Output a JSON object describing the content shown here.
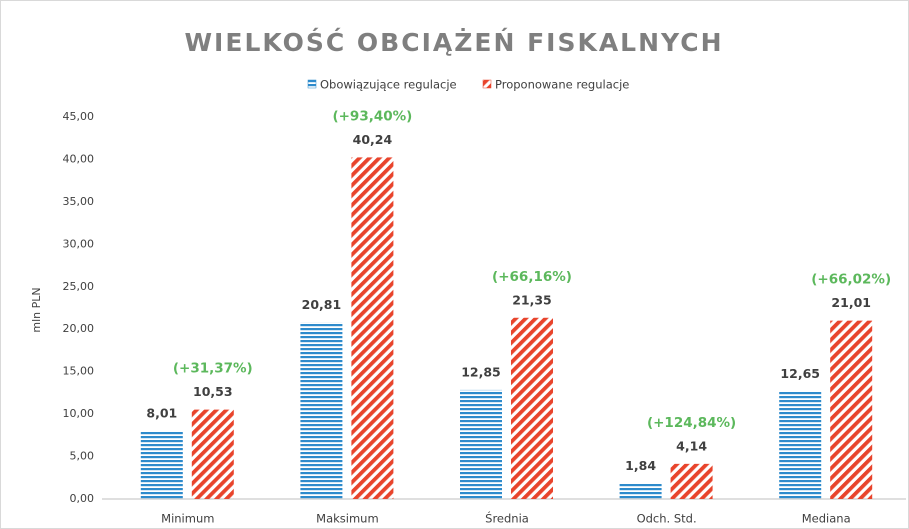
{
  "chart_data": {
    "type": "bar",
    "title": "WIELKOŚĆ OBCIĄŻEŃ FISKALNYCH",
    "y_label": "mln PLN",
    "categories": [
      "Minimum",
      "Maksimum",
      "Średnia",
      "Odch. Std.",
      "Mediana"
    ],
    "series": [
      {
        "name": "Obowiązujące regulacje",
        "color": "#2e8bcc",
        "values": [
          8.01,
          20.81,
          12.85,
          1.84,
          12.65
        ],
        "value_labels": [
          "8,01",
          "20,81",
          "12,85",
          "1,84",
          "12,65"
        ]
      },
      {
        "name": "Proponowane regulacje",
        "color": "#e8442c",
        "values": [
          10.53,
          40.24,
          21.35,
          4.14,
          21.01
        ],
        "value_labels": [
          "10,53",
          "40,24",
          "21,35",
          "4,14",
          "21,01"
        ]
      }
    ],
    "annotations": [
      "(+31,37%)",
      "(+93,40%)",
      "(+66,16%)",
      "(+124,84%)",
      "(+66,02%)"
    ],
    "annotation_color": "#5cb85c",
    "ylim": [
      0,
      45
    ],
    "yticks": [
      {
        "value": 0,
        "label": "0,00"
      },
      {
        "value": 5,
        "label": "5,00"
      },
      {
        "value": 10,
        "label": "10,00"
      },
      {
        "value": 15,
        "label": "15,00"
      },
      {
        "value": 20,
        "label": "20,00"
      },
      {
        "value": 25,
        "label": "25,00"
      },
      {
        "value": 30,
        "label": "30,00"
      },
      {
        "value": 35,
        "label": "35,00"
      },
      {
        "value": 40,
        "label": "40,00"
      },
      {
        "value": 45,
        "label": "45,00"
      }
    ],
    "grid": false
  }
}
